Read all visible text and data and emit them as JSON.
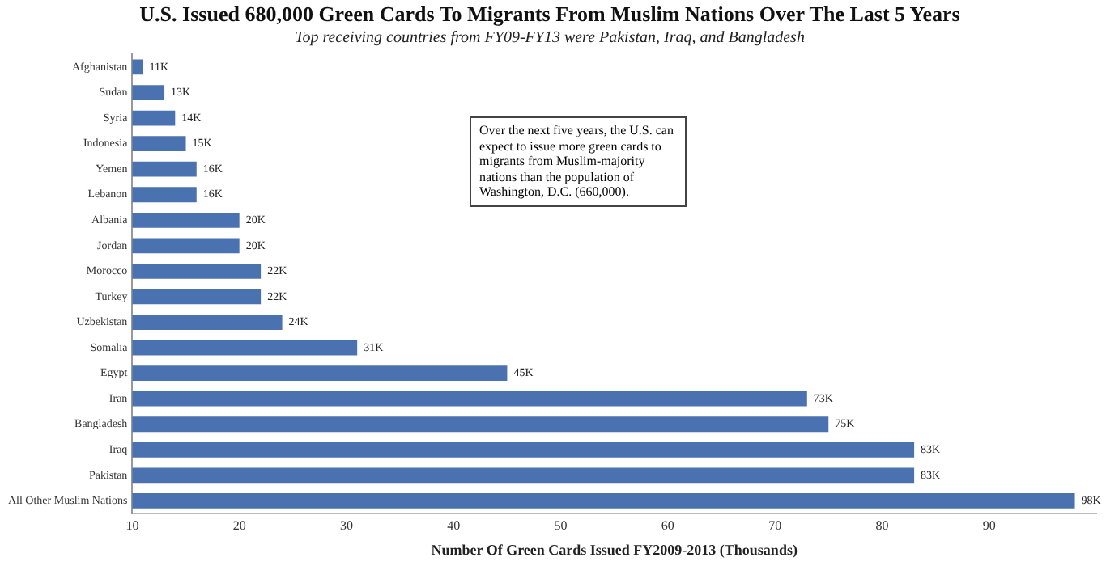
{
  "chart_data": {
    "type": "bar",
    "orientation": "horizontal",
    "title": "U.S. Issued 680,000 Green Cards To Migrants From Muslim Nations Over The Last 5 Years",
    "subtitle": "Top receiving countries from FY09-FY13 were Pakistan, Iraq, and Bangladesh",
    "xlabel": "Number Of Green Cards Issued FY2009-2013 (Thousands)",
    "categories": [
      "Afghanistan",
      "Sudan",
      "Syria",
      "Indonesia",
      "Yemen",
      "Lebanon",
      "Albania",
      "Jordan",
      "Morocco",
      "Turkey",
      "Uzbekistan",
      "Somalia",
      "Egypt",
      "Iran",
      "Bangladesh",
      "Iraq",
      "Pakistan",
      "All Other Muslim Nations"
    ],
    "values": [
      11,
      13,
      14,
      15,
      16,
      16,
      20,
      20,
      22,
      22,
      24,
      31,
      45,
      73,
      75,
      83,
      83,
      98
    ],
    "value_labels": [
      "11K",
      "13K",
      "14K",
      "15K",
      "16K",
      "16K",
      "20K",
      "20K",
      "22K",
      "22K",
      "24K",
      "31K",
      "45K",
      "73K",
      "75K",
      "83K",
      "83K",
      "98K"
    ],
    "color": "#4a72b0",
    "xlim": [
      10,
      100
    ],
    "xticks": [
      10,
      20,
      30,
      40,
      50,
      60,
      70,
      80,
      90
    ],
    "grid": false,
    "legend": false,
    "annotations": [
      "Over the next five years, the U.S. can expect to issue more green cards to migrants from Muslim-majority nations than the population of Washington, D.C. (660,000)."
    ]
  }
}
